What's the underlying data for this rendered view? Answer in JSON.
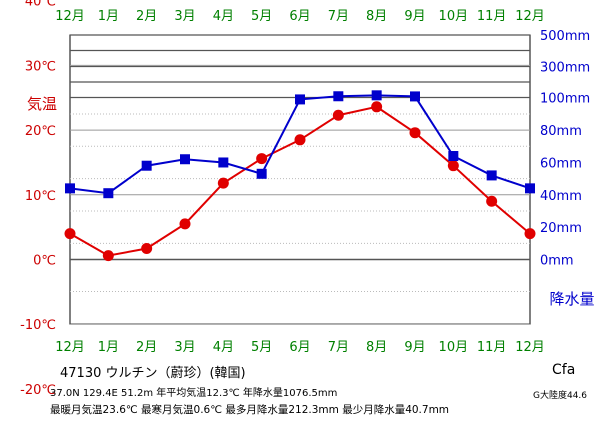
{
  "chart_data": {
    "type": "line",
    "categories": [
      "12月",
      "1月",
      "2月",
      "3月",
      "4月",
      "5月",
      "6月",
      "7月",
      "8月",
      "9月",
      "10月",
      "11月",
      "12月"
    ],
    "series": [
      {
        "name": "気温",
        "axis": "left",
        "color": "#e00000",
        "marker": "circle",
        "values": [
          4.0,
          0.6,
          1.7,
          5.5,
          11.8,
          15.6,
          18.5,
          22.3,
          23.6,
          19.6,
          14.5,
          9.0,
          4.0
        ]
      },
      {
        "name": "降水量",
        "axis": "right",
        "color": "#0000cc",
        "marker": "square",
        "values": [
          44,
          41,
          58,
          62,
          60,
          53,
          99,
          108,
          114,
          107,
          64,
          52,
          44
        ]
      }
    ],
    "left_axis": {
      "label": "気温",
      "color": "#cc0000",
      "ticks": [
        40,
        30,
        20,
        10,
        0,
        -10,
        -20
      ],
      "tick_labels": [
        "40℃",
        "30℃",
        "20℃",
        "10℃",
        "0℃",
        "-10℃",
        "-20℃"
      ],
      "ylim": [
        -20,
        40
      ]
    },
    "right_axis": {
      "label": "降水量",
      "color": "#0000cc",
      "ticks": [
        500,
        300,
        100,
        80,
        60,
        40,
        20,
        0
      ],
      "tick_labels": [
        "500mm",
        "300mm",
        "100mm",
        "80mm",
        "60mm",
        "40mm",
        "20mm",
        "0mm"
      ],
      "linear_range": [
        0,
        100
      ]
    },
    "month_label_color": "#008000",
    "grid": true
  },
  "station": {
    "title": "47130 ウルチン（蔚珍）(韓国)",
    "stats_line1": "37.0N  129.4E  51.2m 年平均気温12.3℃  年降水量1076.5mm",
    "stats_line2": "最暖月気温23.6℃ 最寒月気温0.6℃ 最多月降水量212.3mm 最少月降水量40.7mm"
  },
  "koppen": "Cfa",
  "continentality": "G大陸度44.6"
}
